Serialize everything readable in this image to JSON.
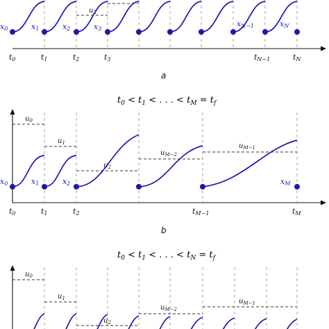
{
  "colors": {
    "trajectory": "#1a1aaa",
    "axis": "#111111",
    "grid": "#9a9a9a",
    "control": "#333333"
  },
  "panel_a": {
    "caption": "a",
    "state_labels": [
      {
        "sym": "x",
        "sub": "0"
      },
      {
        "sym": "x",
        "sub": "1"
      },
      {
        "sym": "x",
        "sub": "2"
      },
      {
        "sym": "x",
        "sub": "3"
      },
      {
        "sym": "x",
        "sub": "N−1"
      },
      {
        "sym": "x",
        "sub": "N"
      }
    ],
    "time_labels": [
      {
        "sym": "t",
        "sub": "0"
      },
      {
        "sym": "t",
        "sub": "1"
      },
      {
        "sym": "t",
        "sub": "2"
      },
      {
        "sym": "t",
        "sub": "3"
      },
      {
        "sym": "t",
        "sub": "N−1"
      },
      {
        "sym": "t",
        "sub": "N"
      }
    ],
    "control_labels": [
      {
        "sym": "u",
        "sub": "2"
      }
    ]
  },
  "panel_b": {
    "title": {
      "pre": "t",
      "parts": [
        {
          "t": "t",
          "s": "0"
        },
        {
          "op": " < "
        },
        {
          "t": "t",
          "s": "1"
        },
        {
          "op": " < . . . < "
        },
        {
          "t": "t",
          "s": "M"
        },
        {
          "op": " = "
        },
        {
          "t": "t",
          "s": "f"
        }
      ]
    },
    "caption": "b",
    "state_labels": [
      {
        "sym": "x",
        "sub": "0"
      },
      {
        "sym": "x",
        "sub": "1"
      },
      {
        "sym": "x",
        "sub": "2"
      },
      {
        "sym": "x",
        "sub": "M"
      }
    ],
    "time_labels": [
      {
        "sym": "t",
        "sub": "0"
      },
      {
        "sym": "t",
        "sub": "1"
      },
      {
        "sym": "t",
        "sub": "2"
      },
      {
        "sym": "t",
        "sub": "M−1"
      },
      {
        "sym": "t",
        "sub": "M"
      }
    ],
    "control_labels": [
      {
        "sym": "u",
        "sub": "0"
      },
      {
        "sym": "u",
        "sub": "1"
      },
      {
        "sym": "u",
        "sub": "2"
      },
      {
        "sym": "u",
        "sub": "M−2"
      },
      {
        "sym": "u",
        "sub": "M−1"
      }
    ]
  },
  "panel_c": {
    "title": {
      "parts": [
        {
          "t": "t",
          "s": "0"
        },
        {
          "op": " < "
        },
        {
          "t": "t",
          "s": "1"
        },
        {
          "op": " < . . . < "
        },
        {
          "t": "t",
          "s": "N"
        },
        {
          "op": " = "
        },
        {
          "t": "t",
          "s": "f"
        }
      ]
    },
    "control_labels": [
      {
        "sym": "u",
        "sub": "0"
      },
      {
        "sym": "u",
        "sub": "1"
      },
      {
        "sym": "u",
        "sub": "2"
      },
      {
        "sym": "u",
        "sub": "M−2"
      },
      {
        "sym": "u",
        "sub": "M−1"
      }
    ]
  }
}
